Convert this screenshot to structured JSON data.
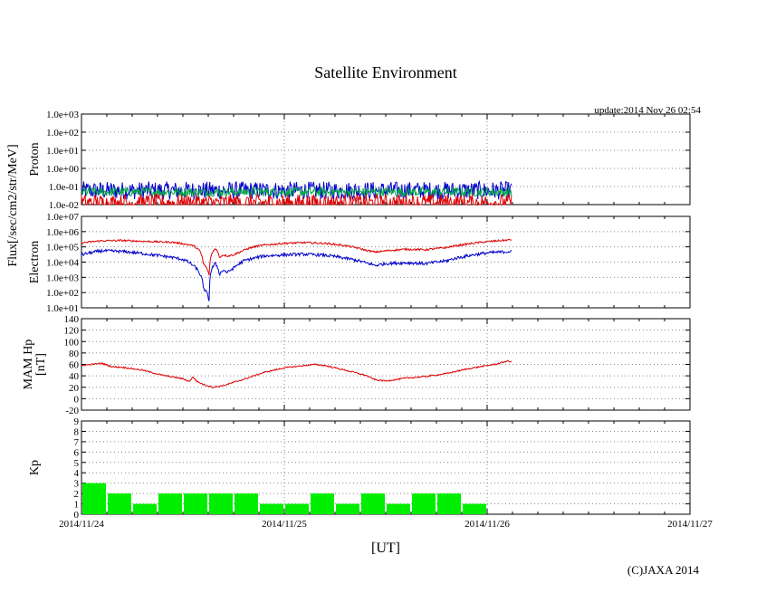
{
  "title": "Satellite Environment",
  "update_text": "update:2014 Nov 26 02:54",
  "xlabel": "[UT]",
  "x_ticks": [
    "2014/11/24",
    "2014/11/25",
    "2014/11/26",
    "2014/11/27"
  ],
  "copyright": "(C)JAXA 2014",
  "flux_ylabel": "Flux[/sec/cm2/str/MeV]",
  "colors": {
    "red": "#dd0000",
    "blue": "#0000cc",
    "green": "#00aa44",
    "bar": "#00ee00",
    "grid": "#888888"
  },
  "chart_data": [
    {
      "type": "line",
      "name": "proton",
      "ylabel": "Proton",
      "yscale": "log",
      "ylim": [
        0.01,
        1000
      ],
      "y_ticks": [
        "1.0e-02",
        "1.0e-01",
        "1.0e+00",
        "1.0e+01",
        "1.0e+02",
        "1.0e+03"
      ],
      "xlim_days": [
        0,
        3
      ],
      "series": [
        {
          "name": "blue",
          "color": "blue",
          "noisy": true,
          "x": [
            0,
            2.12
          ],
          "base": [
            0.06,
            0.06
          ],
          "spread": 0.5
        },
        {
          "name": "green",
          "color": "green",
          "noisy": true,
          "x": [
            0,
            2.12
          ],
          "base": [
            0.05,
            0.05
          ],
          "spread": 0.25
        },
        {
          "name": "red",
          "color": "red",
          "noisy": true,
          "x": [
            0,
            2.12
          ],
          "base": [
            0.012,
            0.012
          ],
          "spread": 0.5
        }
      ]
    },
    {
      "type": "line",
      "name": "electron",
      "ylabel": "Electron",
      "yscale": "log",
      "ylim": [
        10,
        10000000
      ],
      "y_ticks": [
        "1.0e+01",
        "1.0e+02",
        "1.0e+03",
        "1.0e+04",
        "1.0e+05",
        "1.0e+06",
        "1.0e+07"
      ],
      "xlim_days": [
        0,
        3
      ],
      "series": [
        {
          "name": "red",
          "color": "red",
          "noisy": true,
          "spread": 0.06,
          "x": [
            0,
            0.1,
            0.2,
            0.35,
            0.45,
            0.5,
            0.55,
            0.58,
            0.6,
            0.63,
            0.66,
            0.68,
            0.7,
            0.72,
            0.75,
            0.78,
            0.8,
            0.85,
            0.9,
            1.0,
            1.1,
            1.2,
            1.3,
            1.4,
            1.45,
            1.5,
            1.6,
            1.7,
            1.8,
            1.9,
            2.0,
            2.12
          ],
          "base": [
            180000,
            250000,
            260000,
            220000,
            200000,
            160000,
            120000,
            60000,
            8000,
            1000,
            80000,
            20000,
            30000,
            25000,
            30000,
            45000,
            60000,
            100000,
            130000,
            170000,
            190000,
            170000,
            120000,
            60000,
            45000,
            55000,
            70000,
            65000,
            90000,
            150000,
            220000,
            290000
          ]
        },
        {
          "name": "blue",
          "color": "blue",
          "noisy": true,
          "spread": 0.1,
          "x": [
            0,
            0.1,
            0.2,
            0.35,
            0.45,
            0.5,
            0.55,
            0.58,
            0.6,
            0.63,
            0.66,
            0.68,
            0.7,
            0.72,
            0.75,
            0.78,
            0.8,
            0.85,
            0.9,
            1.0,
            1.1,
            1.2,
            1.3,
            1.4,
            1.45,
            1.5,
            1.6,
            1.7,
            1.8,
            1.9,
            2.0,
            2.12
          ],
          "base": [
            30000,
            55000,
            50000,
            30000,
            20000,
            15000,
            6000,
            2000,
            200,
            20,
            8000,
            1500,
            3000,
            2000,
            4000,
            8000,
            12000,
            18000,
            25000,
            30000,
            33000,
            28000,
            18000,
            9000,
            6000,
            8000,
            9000,
            8000,
            12000,
            25000,
            40000,
            50000
          ]
        }
      ]
    },
    {
      "type": "line",
      "name": "mam_hp",
      "ylabel": "MAM Hp [nT]",
      "ylabel_lines": [
        "MAM Hp",
        "[nT]"
      ],
      "yscale": "linear",
      "ylim": [
        -20,
        140
      ],
      "y_ticks": [
        "-20",
        "0",
        "20",
        "40",
        "60",
        "80",
        "100",
        "120",
        "140"
      ],
      "xlim_days": [
        0,
        3
      ],
      "series": [
        {
          "name": "red",
          "color": "red",
          "noisy": true,
          "spread": 1.2,
          "x": [
            0,
            0.05,
            0.1,
            0.15,
            0.2,
            0.3,
            0.4,
            0.45,
            0.5,
            0.53,
            0.55,
            0.57,
            0.6,
            0.65,
            0.7,
            0.8,
            0.9,
            1.0,
            1.1,
            1.15,
            1.2,
            1.3,
            1.4,
            1.45,
            1.5,
            1.6,
            1.7,
            1.8,
            1.9,
            2.0,
            2.05,
            2.1,
            2.12
          ],
          "base": [
            58,
            60,
            62,
            56,
            55,
            50,
            41,
            38,
            35,
            30,
            38,
            30,
            25,
            20,
            23,
            34,
            46,
            54,
            58,
            60,
            58,
            50,
            41,
            33,
            31,
            36,
            39,
            44,
            52,
            58,
            61,
            66,
            64
          ]
        }
      ]
    },
    {
      "type": "bar",
      "name": "kp",
      "ylabel": "Kp",
      "ylim": [
        0,
        9
      ],
      "y_ticks": [
        "0",
        "1",
        "2",
        "3",
        "4",
        "5",
        "6",
        "7",
        "8",
        "9"
      ],
      "xlim_days": [
        0,
        3
      ],
      "bar_width_days": 0.125,
      "values": [
        3,
        2,
        1,
        2,
        2,
        2,
        2,
        1,
        1,
        2,
        1,
        2,
        1,
        2,
        2,
        1
      ]
    }
  ]
}
